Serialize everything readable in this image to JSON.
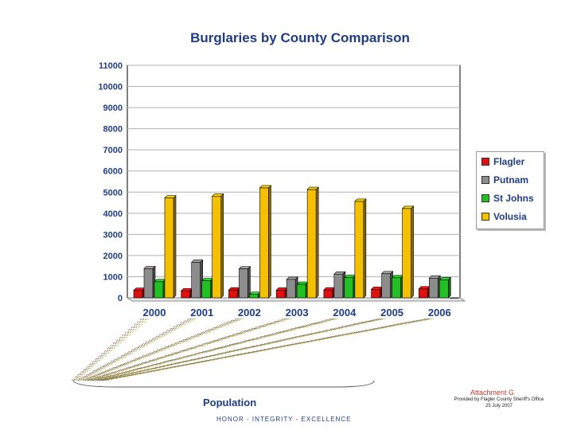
{
  "chart_data": {
    "type": "bar",
    "title": "Burglaries by County Comparison",
    "categories": [
      "2000",
      "2001",
      "2002",
      "2003",
      "2004",
      "2005",
      "2006"
    ],
    "series": [
      {
        "name": "Flagler",
        "color": "#e01010",
        "values": [
          350,
          330,
          370,
          360,
          370,
          400,
          420
        ]
      },
      {
        "name": "Putnam",
        "color": "#8c8c8c",
        "values": [
          1380,
          1680,
          1370,
          870,
          1120,
          1140,
          930
        ]
      },
      {
        "name": "St Johns",
        "color": "#22c022",
        "values": [
          760,
          810,
          160,
          640,
          960,
          950,
          850
        ]
      },
      {
        "name": "Volusia",
        "color": "#f5c000",
        "values": [
          4720,
          4810,
          5200,
          5120,
          4560,
          4220,
          0
        ]
      }
    ],
    "yticks": [
      "0",
      "1000",
      "2000",
      "3000",
      "4000",
      "5000",
      "6000",
      "7000",
      "8000",
      "9000",
      "10000",
      "11000"
    ],
    "ylim": [
      0,
      11000
    ],
    "grid": true,
    "legend_position": "right"
  },
  "population_label": "Population",
  "attachment": "Attachment G",
  "provided_by": "Provided by Flagler County Sheriff's Office",
  "provided_date": "25 July 2007",
  "motto": "HONOR - INTEGRITY - EXCELLENCE"
}
